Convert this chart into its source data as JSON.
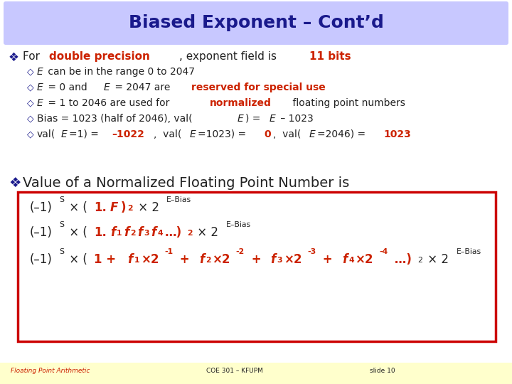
{
  "title": "Biased Exponent – Cont’d",
  "title_color": "#1a1a8c",
  "title_bg": "#c8c8ff",
  "slide_bg": "#ffffff",
  "footer_bg": "#ffffcc",
  "footer_left": "Floating Point Arithmetic",
  "footer_mid": "COE 301 – KFUPM",
  "footer_right": "slide 10",
  "bullet_color": "#1a1a8c",
  "dark_red": "#cc2200",
  "black_color": "#222222",
  "box_border": "#cc0000",
  "box_bg": "#ffffff",
  "title_fontsize": 18,
  "body_fontsize": 11,
  "sub_fontsize": 10,
  "formula_fontsize": 12,
  "sup_fontsize": 8,
  "footer_fontsize": 6.5
}
